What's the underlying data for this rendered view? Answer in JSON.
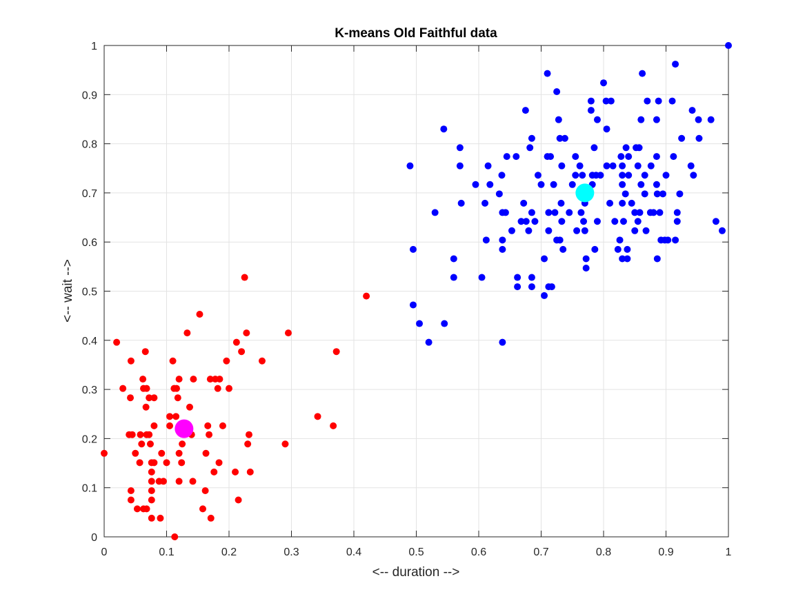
{
  "chart_data": {
    "type": "scatter",
    "title": "K-means Old Faithful data",
    "xlabel": "<-- duration -->",
    "ylabel": "<-- wait -->",
    "xlim": [
      0,
      1
    ],
    "ylim": [
      0,
      1
    ],
    "xticks": [
      0,
      0.1,
      0.2,
      0.3,
      0.4,
      0.5,
      0.6,
      0.7,
      0.8,
      0.9,
      1
    ],
    "yticks": [
      0,
      0.1,
      0.2,
      0.3,
      0.4,
      0.5,
      0.6,
      0.7,
      0.8,
      0.9,
      1
    ],
    "xtick_labels": [
      "0",
      "0.1",
      "0.2",
      "0.3",
      "0.4",
      "0.5",
      "0.6",
      "0.7",
      "0.8",
      "0.9",
      "1"
    ],
    "ytick_labels": [
      "0",
      "0.1",
      "0.2",
      "0.3",
      "0.4",
      "0.5",
      "0.6",
      "0.7",
      "0.8",
      "0.9",
      "1"
    ],
    "grid": true,
    "series": [
      {
        "color": "#ff0000",
        "marker": "point",
        "points": [
          [
            0.0,
            0.17
          ],
          [
            0.02,
            0.396
          ],
          [
            0.03,
            0.302
          ],
          [
            0.04,
            0.208
          ],
          [
            0.042,
            0.283
          ],
          [
            0.043,
            0.358
          ],
          [
            0.043,
            0.094
          ],
          [
            0.043,
            0.075
          ],
          [
            0.045,
            0.208
          ],
          [
            0.05,
            0.17
          ],
          [
            0.053,
            0.057
          ],
          [
            0.057,
            0.151
          ],
          [
            0.058,
            0.208
          ],
          [
            0.06,
            0.189
          ],
          [
            0.062,
            0.321
          ],
          [
            0.063,
            0.302
          ],
          [
            0.063,
            0.057
          ],
          [
            0.066,
            0.377
          ],
          [
            0.067,
            0.264
          ],
          [
            0.068,
            0.208
          ],
          [
            0.068,
            0.302
          ],
          [
            0.068,
            0.057
          ],
          [
            0.072,
            0.283
          ],
          [
            0.072,
            0.208
          ],
          [
            0.074,
            0.189
          ],
          [
            0.076,
            0.151
          ],
          [
            0.076,
            0.132
          ],
          [
            0.076,
            0.113
          ],
          [
            0.076,
            0.094
          ],
          [
            0.076,
            0.075
          ],
          [
            0.076,
            0.038
          ],
          [
            0.08,
            0.226
          ],
          [
            0.08,
            0.283
          ],
          [
            0.08,
            0.151
          ],
          [
            0.088,
            0.113
          ],
          [
            0.09,
            0.038
          ],
          [
            0.092,
            0.17
          ],
          [
            0.095,
            0.113
          ],
          [
            0.1,
            0.151
          ],
          [
            0.105,
            0.245
          ],
          [
            0.105,
            0.226
          ],
          [
            0.11,
            0.358
          ],
          [
            0.112,
            0.302
          ],
          [
            0.113,
            0.0
          ],
          [
            0.115,
            0.245
          ],
          [
            0.116,
            0.302
          ],
          [
            0.118,
            0.283
          ],
          [
            0.12,
            0.321
          ],
          [
            0.12,
            0.113
          ],
          [
            0.12,
            0.17
          ],
          [
            0.124,
            0.151
          ],
          [
            0.125,
            0.189
          ],
          [
            0.13,
            0.226
          ],
          [
            0.133,
            0.415
          ],
          [
            0.137,
            0.264
          ],
          [
            0.14,
            0.208
          ],
          [
            0.142,
            0.113
          ],
          [
            0.143,
            0.321
          ],
          [
            0.153,
            0.453
          ],
          [
            0.158,
            0.057
          ],
          [
            0.162,
            0.094
          ],
          [
            0.163,
            0.17
          ],
          [
            0.166,
            0.226
          ],
          [
            0.168,
            0.208
          ],
          [
            0.17,
            0.321
          ],
          [
            0.171,
            0.038
          ],
          [
            0.176,
            0.132
          ],
          [
            0.178,
            0.321
          ],
          [
            0.182,
            0.302
          ],
          [
            0.184,
            0.151
          ],
          [
            0.185,
            0.321
          ],
          [
            0.19,
            0.226
          ],
          [
            0.196,
            0.358
          ],
          [
            0.2,
            0.302
          ],
          [
            0.21,
            0.132
          ],
          [
            0.212,
            0.396
          ],
          [
            0.215,
            0.075
          ],
          [
            0.22,
            0.377
          ],
          [
            0.225,
            0.528
          ],
          [
            0.228,
            0.415
          ],
          [
            0.23,
            0.189
          ],
          [
            0.232,
            0.208
          ],
          [
            0.234,
            0.132
          ],
          [
            0.253,
            0.358
          ],
          [
            0.29,
            0.189
          ],
          [
            0.295,
            0.415
          ],
          [
            0.342,
            0.245
          ],
          [
            0.367,
            0.226
          ],
          [
            0.372,
            0.377
          ],
          [
            0.42,
            0.49
          ]
        ]
      },
      {
        "color": "#0000ff",
        "marker": "point",
        "points": [
          [
            0.49,
            0.755
          ],
          [
            0.495,
            0.585
          ],
          [
            0.495,
            0.472
          ],
          [
            0.505,
            0.434
          ],
          [
            0.52,
            0.396
          ],
          [
            0.53,
            0.66
          ],
          [
            0.544,
            0.83
          ],
          [
            0.545,
            0.434
          ],
          [
            0.56,
            0.566
          ],
          [
            0.56,
            0.528
          ],
          [
            0.57,
            0.792
          ],
          [
            0.57,
            0.755
          ],
          [
            0.572,
            0.679
          ],
          [
            0.595,
            0.717
          ],
          [
            0.605,
            0.528
          ],
          [
            0.61,
            0.679
          ],
          [
            0.612,
            0.604
          ],
          [
            0.615,
            0.755
          ],
          [
            0.618,
            0.717
          ],
          [
            0.633,
            0.698
          ],
          [
            0.637,
            0.736
          ],
          [
            0.638,
            0.66
          ],
          [
            0.638,
            0.604
          ],
          [
            0.638,
            0.585
          ],
          [
            0.638,
            0.396
          ],
          [
            0.643,
            0.66
          ],
          [
            0.645,
            0.774
          ],
          [
            0.653,
            0.623
          ],
          [
            0.66,
            0.774
          ],
          [
            0.662,
            0.528
          ],
          [
            0.662,
            0.509
          ],
          [
            0.668,
            0.642
          ],
          [
            0.672,
            0.679
          ],
          [
            0.675,
            0.868
          ],
          [
            0.676,
            0.642
          ],
          [
            0.68,
            0.623
          ],
          [
            0.682,
            0.792
          ],
          [
            0.685,
            0.811
          ],
          [
            0.685,
            0.66
          ],
          [
            0.685,
            0.528
          ],
          [
            0.685,
            0.509
          ],
          [
            0.69,
            0.642
          ],
          [
            0.695,
            0.736
          ],
          [
            0.7,
            0.717
          ],
          [
            0.705,
            0.491
          ],
          [
            0.705,
            0.566
          ],
          [
            0.71,
            0.943
          ],
          [
            0.71,
            0.774
          ],
          [
            0.712,
            0.66
          ],
          [
            0.712,
            0.623
          ],
          [
            0.712,
            0.509
          ],
          [
            0.715,
            0.774
          ],
          [
            0.717,
            0.509
          ],
          [
            0.72,
            0.717
          ],
          [
            0.722,
            0.66
          ],
          [
            0.725,
            0.906
          ],
          [
            0.725,
            0.604
          ],
          [
            0.728,
            0.849
          ],
          [
            0.73,
            0.811
          ],
          [
            0.73,
            0.604
          ],
          [
            0.732,
            0.679
          ],
          [
            0.733,
            0.755
          ],
          [
            0.733,
            0.642
          ],
          [
            0.735,
            0.585
          ],
          [
            0.738,
            0.811
          ],
          [
            0.745,
            0.66
          ],
          [
            0.75,
            0.717
          ],
          [
            0.755,
            0.774
          ],
          [
            0.755,
            0.736
          ],
          [
            0.757,
            0.623
          ],
          [
            0.762,
            0.755
          ],
          [
            0.764,
            0.66
          ],
          [
            0.766,
            0.736
          ],
          [
            0.768,
            0.642
          ],
          [
            0.77,
            0.679
          ],
          [
            0.77,
            0.623
          ],
          [
            0.772,
            0.566
          ],
          [
            0.772,
            0.547
          ],
          [
            0.78,
            0.887
          ],
          [
            0.78,
            0.868
          ],
          [
            0.782,
            0.736
          ],
          [
            0.782,
            0.717
          ],
          [
            0.785,
            0.792
          ],
          [
            0.786,
            0.585
          ],
          [
            0.788,
            0.736
          ],
          [
            0.79,
            0.642
          ],
          [
            0.79,
            0.849
          ],
          [
            0.795,
            0.736
          ],
          [
            0.8,
            0.924
          ],
          [
            0.804,
            0.887
          ],
          [
            0.805,
            0.83
          ],
          [
            0.805,
            0.755
          ],
          [
            0.81,
            0.679
          ],
          [
            0.812,
            0.887
          ],
          [
            0.815,
            0.755
          ],
          [
            0.818,
            0.642
          ],
          [
            0.823,
            0.585
          ],
          [
            0.826,
            0.604
          ],
          [
            0.828,
            0.774
          ],
          [
            0.83,
            0.755
          ],
          [
            0.83,
            0.736
          ],
          [
            0.83,
            0.717
          ],
          [
            0.83,
            0.679
          ],
          [
            0.83,
            0.566
          ],
          [
            0.832,
            0.642
          ],
          [
            0.835,
            0.698
          ],
          [
            0.836,
            0.792
          ],
          [
            0.838,
            0.585
          ],
          [
            0.838,
            0.566
          ],
          [
            0.84,
            0.774
          ],
          [
            0.84,
            0.736
          ],
          [
            0.845,
            0.679
          ],
          [
            0.85,
            0.66
          ],
          [
            0.85,
            0.623
          ],
          [
            0.852,
            0.792
          ],
          [
            0.855,
            0.755
          ],
          [
            0.855,
            0.642
          ],
          [
            0.857,
            0.792
          ],
          [
            0.858,
            0.66
          ],
          [
            0.86,
            0.849
          ],
          [
            0.86,
            0.717
          ],
          [
            0.862,
            0.943
          ],
          [
            0.866,
            0.736
          ],
          [
            0.866,
            0.698
          ],
          [
            0.868,
            0.623
          ],
          [
            0.87,
            0.887
          ],
          [
            0.875,
            0.66
          ],
          [
            0.876,
            0.755
          ],
          [
            0.88,
            0.66
          ],
          [
            0.885,
            0.849
          ],
          [
            0.885,
            0.774
          ],
          [
            0.885,
            0.717
          ],
          [
            0.886,
            0.698
          ],
          [
            0.886,
            0.566
          ],
          [
            0.888,
            0.887
          ],
          [
            0.89,
            0.66
          ],
          [
            0.892,
            0.604
          ],
          [
            0.895,
            0.698
          ],
          [
            0.898,
            0.604
          ],
          [
            0.9,
            0.736
          ],
          [
            0.903,
            0.604
          ],
          [
            0.91,
            0.887
          ],
          [
            0.912,
            0.774
          ],
          [
            0.915,
            0.604
          ],
          [
            0.915,
            0.962
          ],
          [
            0.918,
            0.642
          ],
          [
            0.918,
            0.66
          ],
          [
            0.922,
            0.698
          ],
          [
            0.925,
            0.811
          ],
          [
            0.94,
            0.755
          ],
          [
            0.942,
            0.868
          ],
          [
            0.944,
            0.736
          ],
          [
            0.952,
            0.849
          ],
          [
            0.953,
            0.811
          ],
          [
            0.972,
            0.849
          ],
          [
            0.98,
            0.642
          ],
          [
            0.99,
            0.623
          ],
          [
            1.0,
            1.0
          ]
        ]
      }
    ],
    "centroids": [
      {
        "color": "#ff00ff",
        "x": 0.128,
        "y": 0.22
      },
      {
        "color": "#00ffff",
        "x": 0.77,
        "y": 0.7
      }
    ]
  }
}
